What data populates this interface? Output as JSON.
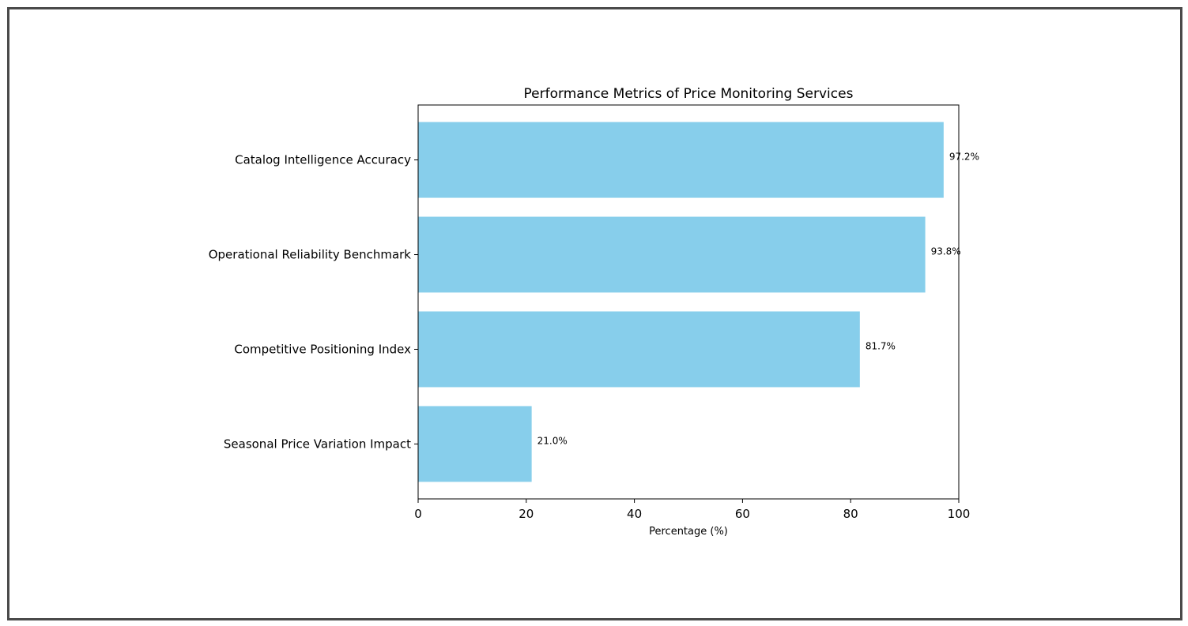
{
  "chart_data": {
    "type": "bar",
    "orientation": "horizontal",
    "title": "Performance Metrics of Price Monitoring Services",
    "xlabel": "Percentage (%)",
    "ylabel": "",
    "xlim": [
      0,
      100
    ],
    "xticks": [
      0,
      20,
      40,
      60,
      80,
      100
    ],
    "categories": [
      "Catalog Intelligence Accuracy",
      "Operational Reliability Benchmark",
      "Competitive Positioning Index",
      "Seasonal Price Variation Impact"
    ],
    "values": [
      97.2,
      93.8,
      81.7,
      21.0
    ],
    "value_labels": [
      "97.2%",
      "93.8%",
      "81.7%",
      "21.0%"
    ],
    "bar_color": "#87CEEB",
    "grid": false,
    "legend": "none"
  }
}
